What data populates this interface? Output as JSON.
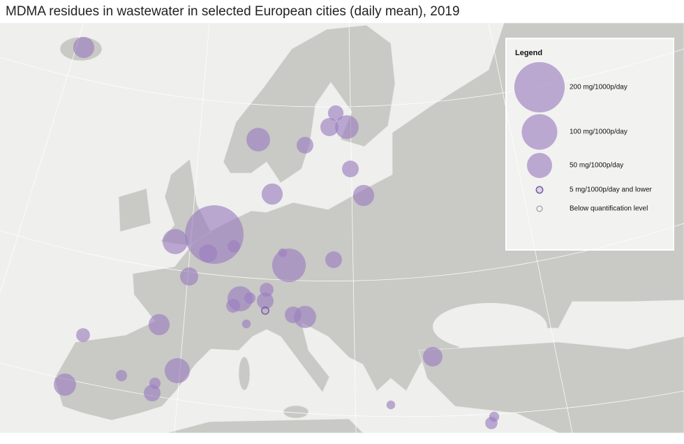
{
  "title": "MDMA residues in wastewater in selected European cities (daily mean), 2019",
  "legend": {
    "title": "Legend",
    "items": [
      {
        "value": 200,
        "label": "200 mg/1000p/day"
      },
      {
        "value": 100,
        "label": "100 mg/1000p/day"
      },
      {
        "value": 50,
        "label": "50 mg/1000p/day"
      },
      {
        "value": 5,
        "label": "5 mg/1000p/day and lower"
      },
      {
        "label": "Below quantification level"
      }
    ]
  },
  "bubbles": {
    "color": "#9b7fc0",
    "values": [
      35,
      44,
      22,
      19,
      26,
      44,
      22,
      35,
      35,
      271,
      50,
      26,
      12,
      6,
      89,
      22,
      26,
      50,
      15,
      10,
      15,
      22,
      4,
      22,
      39,
      6,
      35,
      15,
      50,
      10,
      39,
      10,
      22,
      30,
      6,
      8,
      12
    ]
  }
}
